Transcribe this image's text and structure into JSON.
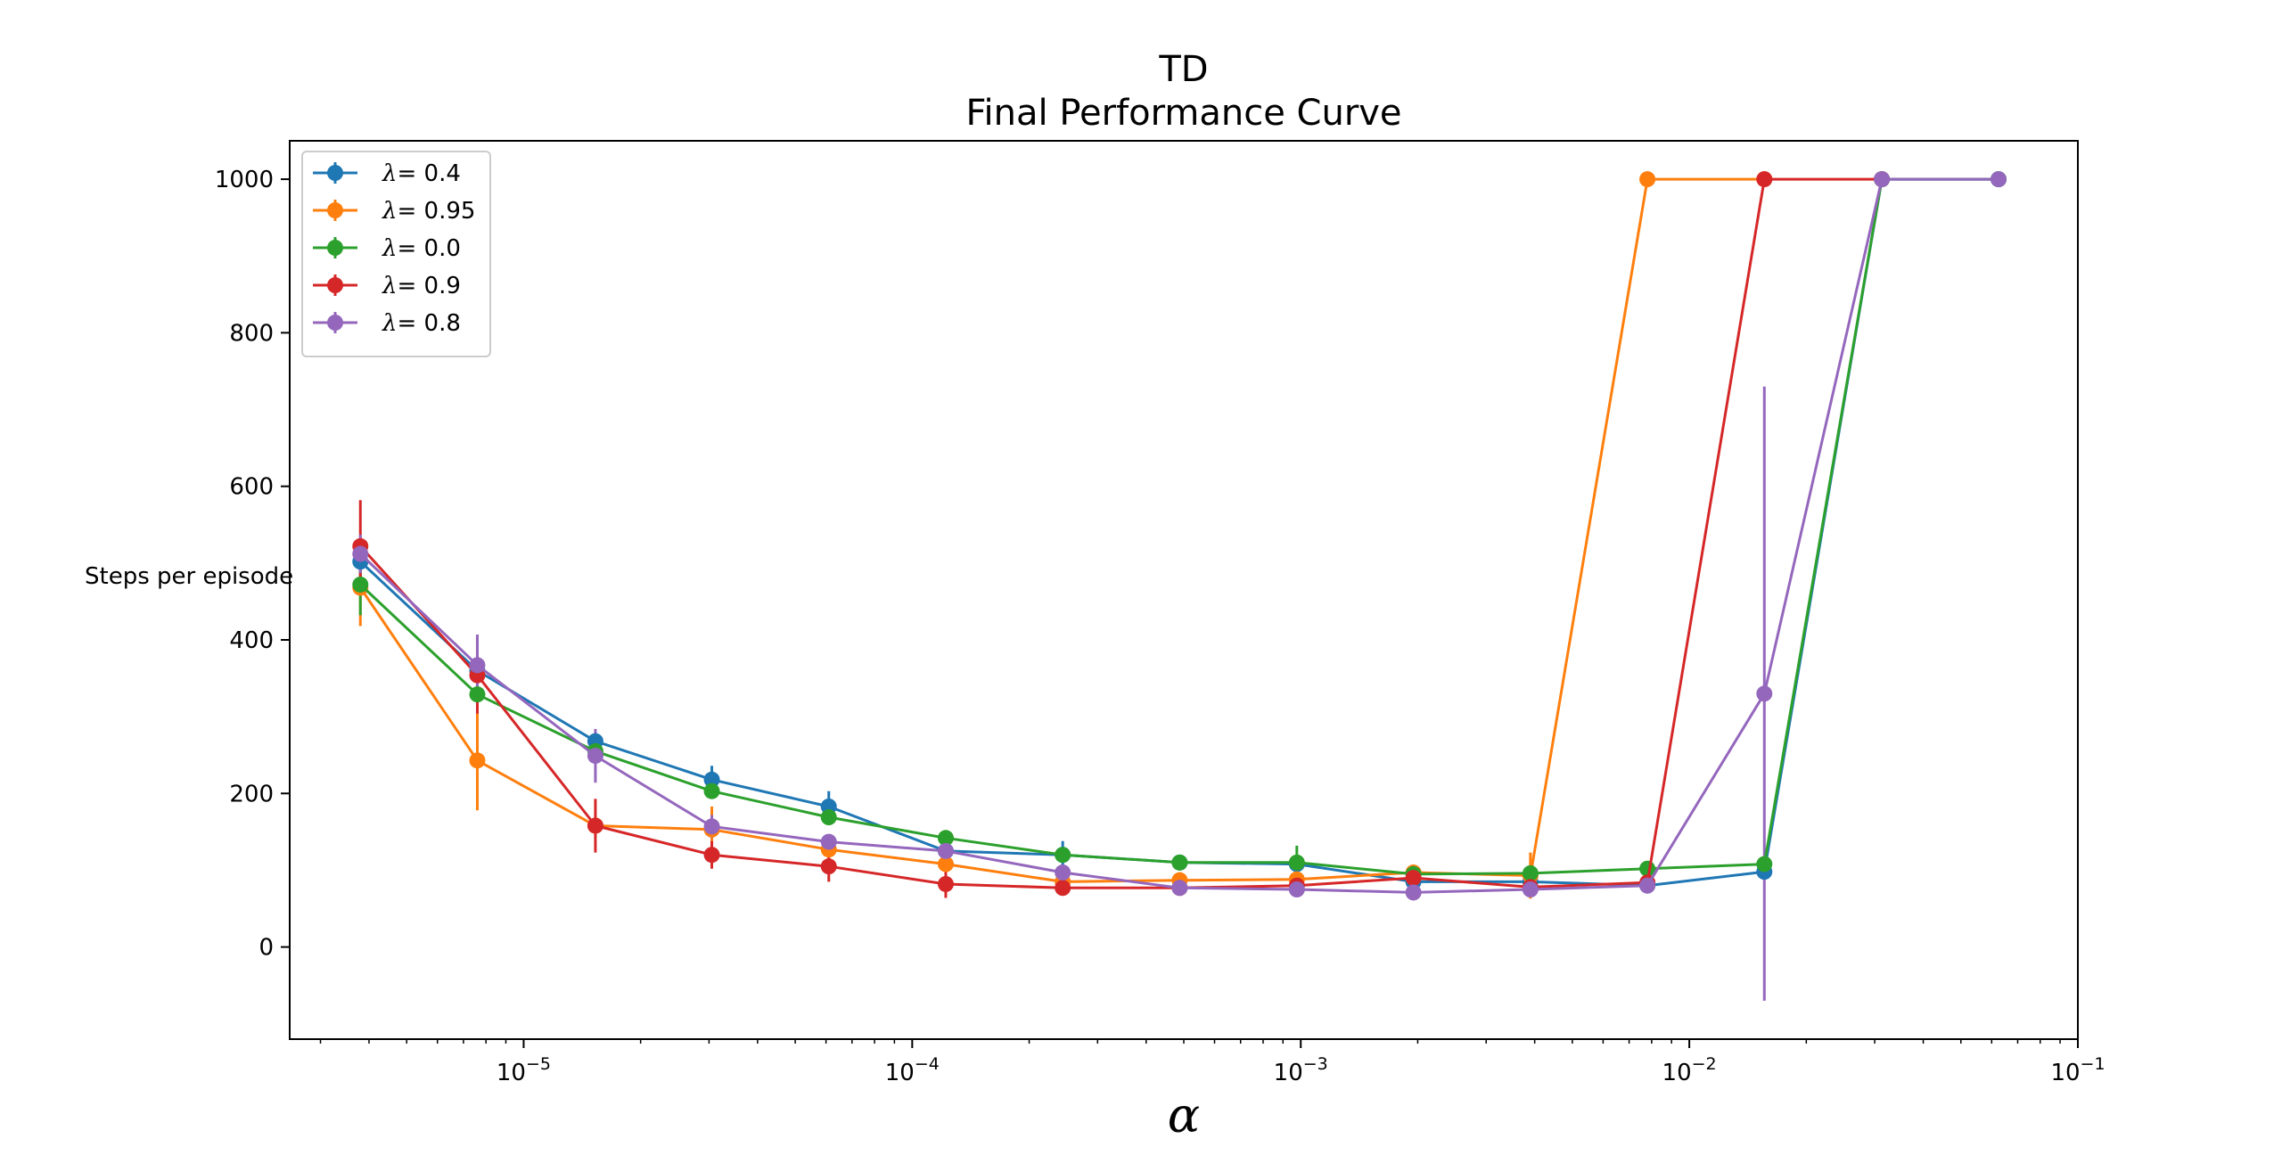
{
  "chart_data": {
    "type": "line",
    "title": "TD",
    "subtitle": "Final Performance Curve",
    "xlabel": "α",
    "ylabel": "Steps per episode",
    "xscale": "log",
    "xlim": [
      2.5e-06,
      0.1
    ],
    "ylim": [
      -120,
      1050
    ],
    "grid": false,
    "legend_position": "top-left",
    "x_ticks": [
      1e-05,
      0.0001,
      0.001,
      0.01,
      0.1
    ],
    "x_tick_labels": [
      {
        "base": "10",
        "exp": "−5"
      },
      {
        "base": "10",
        "exp": "−4"
      },
      {
        "base": "10",
        "exp": "−3"
      },
      {
        "base": "10",
        "exp": "−2"
      },
      {
        "base": "10",
        "exp": "−1"
      }
    ],
    "y_ticks": [
      0,
      200,
      400,
      600,
      800,
      1000
    ],
    "y_tick_labels": [
      "0",
      "200",
      "400",
      "600",
      "800",
      "1000"
    ],
    "x": [
      3.8e-06,
      7.6e-06,
      1.53e-05,
      3.05e-05,
      6.1e-05,
      0.000122,
      0.000244,
      0.000488,
      0.000977,
      0.00195,
      0.0039,
      0.0078,
      0.0156,
      0.0313,
      0.0625
    ],
    "series": [
      {
        "name_prefix": "λ",
        "name_value": "= 0.4",
        "color": "#1f77b4",
        "values": [
          502,
          360,
          268,
          218,
          183,
          125,
          120,
          110,
          108,
          85,
          85,
          80,
          98,
          1000,
          1000
        ],
        "errors": [
          20,
          15,
          12,
          18,
          20,
          8,
          18,
          6,
          12,
          8,
          8,
          6,
          6,
          0,
          0
        ]
      },
      {
        "name_prefix": "λ",
        "name_value": "= 0.95",
        "color": "#ff7f0e",
        "values": [
          468,
          243,
          158,
          153,
          127,
          108,
          85,
          87,
          88,
          97,
          93,
          1000,
          1000,
          null,
          null
        ],
        "errors": [
          50,
          65,
          15,
          30,
          10,
          8,
          8,
          6,
          6,
          6,
          30,
          0,
          0,
          null,
          null
        ]
      },
      {
        "name_prefix": "λ",
        "name_value": "= 0.0",
        "color": "#2ca02c",
        "values": [
          472,
          329,
          255,
          203,
          169,
          142,
          120,
          110,
          110,
          95,
          96,
          102,
          108,
          1000,
          1000
        ],
        "errors": [
          40,
          12,
          12,
          10,
          10,
          8,
          8,
          6,
          22,
          6,
          6,
          6,
          6,
          0,
          0
        ]
      },
      {
        "name_prefix": "λ",
        "name_value": "= 0.9",
        "color": "#d62728",
        "values": [
          522,
          354,
          158,
          120,
          105,
          82,
          77,
          77,
          80,
          90,
          78,
          84,
          1000,
          1000,
          null
        ],
        "errors": [
          60,
          50,
          35,
          18,
          20,
          18,
          8,
          6,
          6,
          6,
          6,
          6,
          0,
          0,
          null
        ]
      },
      {
        "name_prefix": "λ",
        "name_value": "= 0.8",
        "color": "#9467bd",
        "values": [
          512,
          367,
          249,
          157,
          137,
          125,
          97,
          77,
          75,
          71,
          75,
          80,
          330,
          1000,
          1000
        ],
        "errors": [
          25,
          40,
          35,
          15,
          10,
          8,
          8,
          6,
          6,
          6,
          6,
          6,
          400,
          0,
          0
        ]
      }
    ]
  }
}
